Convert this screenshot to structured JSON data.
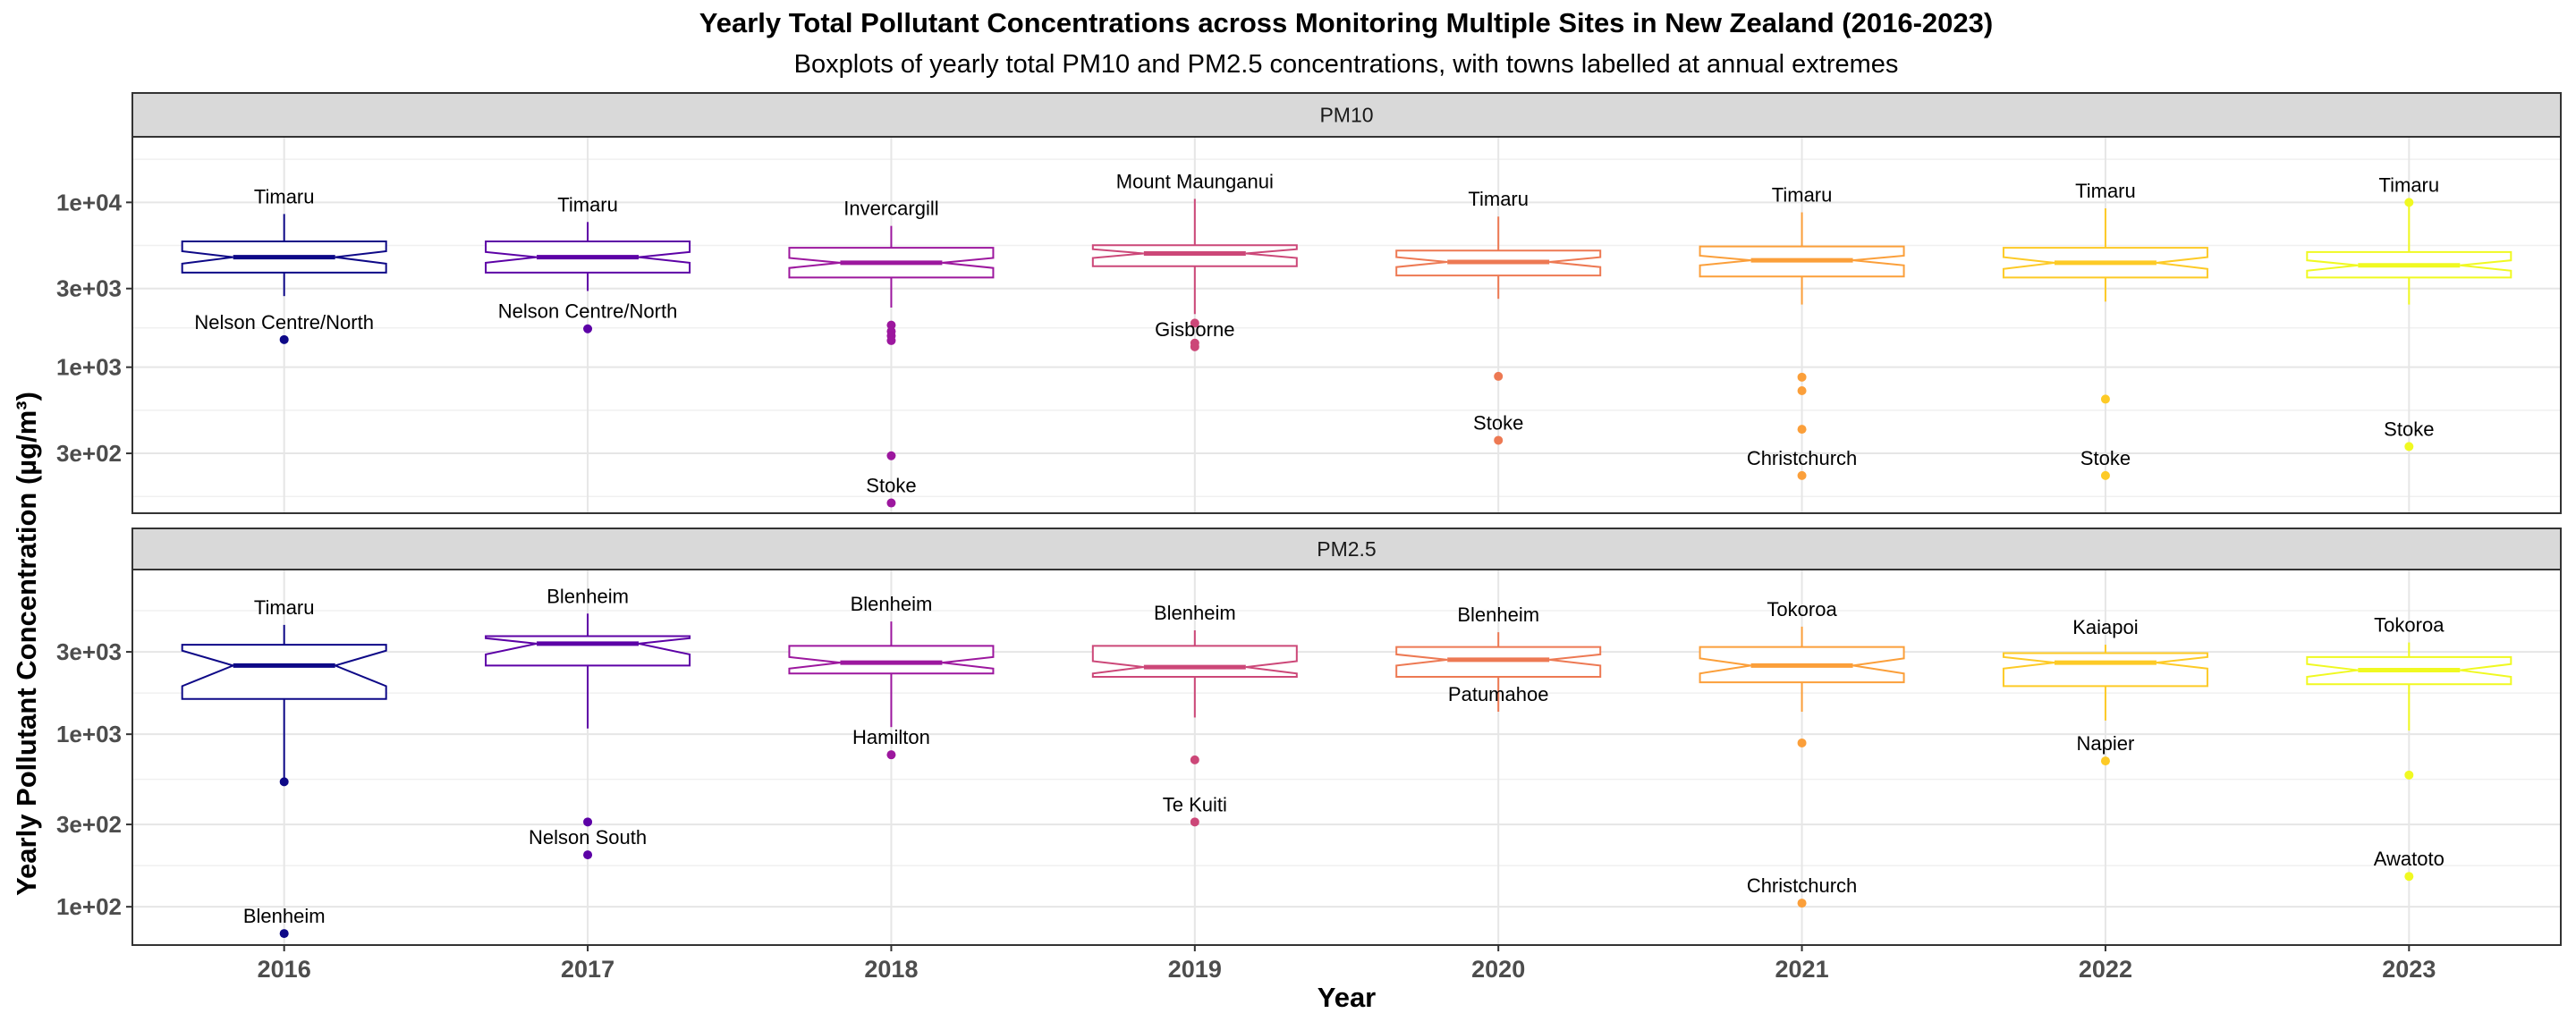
{
  "chart_data": {
    "type": "boxplot",
    "title": "Yearly Total Pollutant Concentrations across Monitoring Multiple Sites in New Zealand (2016-2023)",
    "subtitle": "Boxplots of yearly total PM10 and PM2.5 concentrations, with towns labelled at annual extremes",
    "xlabel": "Year",
    "ylabel": "Yearly Pollutant Concentration (µg/m³)",
    "y_scale": "log10",
    "grid": true,
    "notched": true,
    "categories": [
      "2016",
      "2017",
      "2018",
      "2019",
      "2020",
      "2021",
      "2022",
      "2023"
    ],
    "colors": [
      "#0d0887",
      "#5c01a6",
      "#9c179e",
      "#cc4778",
      "#ed7953",
      "#fb9f3a",
      "#fdca26",
      "#f0f921"
    ],
    "panels": [
      {
        "name": "PM10",
        "ylim": [
          130,
          25000
        ],
        "yticks": [
          300,
          1000,
          3000,
          10000
        ],
        "ytick_labels": [
          "3e+02",
          "1e+03",
          "3e+03",
          "1e+04"
        ],
        "boxes": [
          {
            "year": "2016",
            "q1": 3750,
            "median": 4650,
            "q3": 5800,
            "whisker_low": 2700,
            "whisker_high": 8500,
            "notch_low": 4250,
            "notch_high": 5050,
            "outliers": [
              1470
            ],
            "max_label": "Timaru",
            "min_label": "Nelson Centre/North"
          },
          {
            "year": "2017",
            "q1": 3750,
            "median": 4650,
            "q3": 5800,
            "whisker_low": 2900,
            "whisker_high": 7600,
            "notch_low": 4300,
            "notch_high": 5000,
            "outliers": [
              1710
            ],
            "max_label": "Timaru",
            "min_label": "Nelson Centre/North"
          },
          {
            "year": "2018",
            "q1": 3500,
            "median": 4300,
            "q3": 5300,
            "whisker_low": 2300,
            "whisker_high": 7200,
            "notch_low": 4000,
            "notch_high": 4600,
            "outliers": [
              1800,
              1650,
              1550,
              1450,
              290,
              150
            ],
            "max_label": "Invercargill",
            "min_label": "Stoke"
          },
          {
            "year": "2019",
            "q1": 4100,
            "median": 4900,
            "q3": 5500,
            "whisker_low": 2100,
            "whisker_high": 10500,
            "notch_low": 4600,
            "notch_high": 5200,
            "outliers": [
              1850,
              1400,
              1330
            ],
            "max_label": "Mount Maunganui",
            "min_label": "Gisborne"
          },
          {
            "year": "2020",
            "q1": 3600,
            "median": 4350,
            "q3": 5100,
            "whisker_low": 2600,
            "whisker_high": 8200,
            "notch_low": 4050,
            "notch_high": 4650,
            "outliers": [
              880,
              360
            ],
            "max_label": "Timaru",
            "min_label": "Stoke"
          },
          {
            "year": "2021",
            "q1": 3550,
            "median": 4450,
            "q3": 5400,
            "whisker_low": 2400,
            "whisker_high": 8700,
            "notch_low": 4150,
            "notch_high": 4750,
            "outliers": [
              870,
              720,
              420,
              220
            ],
            "max_label": "Timaru",
            "min_label": "Christchurch"
          },
          {
            "year": "2022",
            "q1": 3500,
            "median": 4300,
            "q3": 5300,
            "whisker_low": 2500,
            "whisker_high": 9200,
            "notch_low": 3950,
            "notch_high": 4650,
            "outliers": [
              640,
              220
            ],
            "max_label": "Timaru",
            "min_label": "Stoke"
          },
          {
            "year": "2023",
            "q1": 3500,
            "median": 4150,
            "q3": 5000,
            "whisker_low": 2400,
            "whisker_high": 10000,
            "notch_low": 3850,
            "notch_high": 4450,
            "outliers": [
              10000,
              330
            ],
            "max_label": "Timaru",
            "min_label": "Stoke"
          }
        ]
      },
      {
        "name": "PM2.5",
        "ylim": [
          60,
          9000
        ],
        "yticks": [
          100,
          300,
          1000,
          3000
        ],
        "ytick_labels": [
          "1e+02",
          "3e+02",
          "1e+03",
          "3e+03"
        ],
        "boxes": [
          {
            "year": "2016",
            "q1": 1600,
            "median": 2500,
            "q3": 3300,
            "whisker_low": 530,
            "whisker_high": 4300,
            "notch_low": 1900,
            "notch_high": 3050,
            "outliers": [
              530,
              70
            ],
            "max_label": "Timaru",
            "min_label": "Blenheim"
          },
          {
            "year": "2017",
            "q1": 2500,
            "median": 3350,
            "q3": 3700,
            "whisker_low": 1080,
            "whisker_high": 5000,
            "notch_low": 2900,
            "notch_high": 3600,
            "outliers": [
              310,
              200
            ],
            "max_label": "Blenheim",
            "min_label": "Nelson South"
          },
          {
            "year": "2018",
            "q1": 2250,
            "median": 2600,
            "q3": 3250,
            "whisker_low": 1100,
            "whisker_high": 4500,
            "notch_low": 2400,
            "notch_high": 2800,
            "outliers": [
              760
            ],
            "max_label": "Blenheim",
            "min_label": "Hamilton"
          },
          {
            "year": "2019",
            "q1": 2150,
            "median": 2450,
            "q3": 3250,
            "whisker_low": 1250,
            "whisker_high": 4000,
            "notch_low": 2250,
            "notch_high": 2650,
            "outliers": [
              710,
              310
            ],
            "max_label": "Blenheim",
            "min_label": "Te Kuiti"
          },
          {
            "year": "2020",
            "q1": 2150,
            "median": 2700,
            "q3": 3200,
            "whisker_low": 1350,
            "whisker_high": 3900,
            "notch_low": 2500,
            "notch_high": 2900,
            "outliers": [],
            "max_label": "Blenheim",
            "min_label": "Patumahoe"
          },
          {
            "year": "2021",
            "q1": 2000,
            "median": 2500,
            "q3": 3200,
            "whisker_low": 1350,
            "whisker_high": 4200,
            "notch_low": 2250,
            "notch_high": 2750,
            "outliers": [
              890,
              105
            ],
            "max_label": "Tokoroa",
            "min_label": "Christchurch"
          },
          {
            "year": "2022",
            "q1": 1900,
            "median": 2600,
            "q3": 2950,
            "whisker_low": 1200,
            "whisker_high": 3300,
            "notch_low": 2400,
            "notch_high": 2800,
            "outliers": [
              700
            ],
            "max_label": "Kaiapoi",
            "min_label": "Napier"
          },
          {
            "year": "2023",
            "q1": 1950,
            "median": 2350,
            "q3": 2800,
            "whisker_low": 1050,
            "whisker_high": 3400,
            "notch_low": 2150,
            "notch_high": 2550,
            "outliers": [
              580,
              150
            ],
            "max_label": "Tokoroa",
            "min_label": "Awatoto"
          }
        ]
      }
    ]
  }
}
